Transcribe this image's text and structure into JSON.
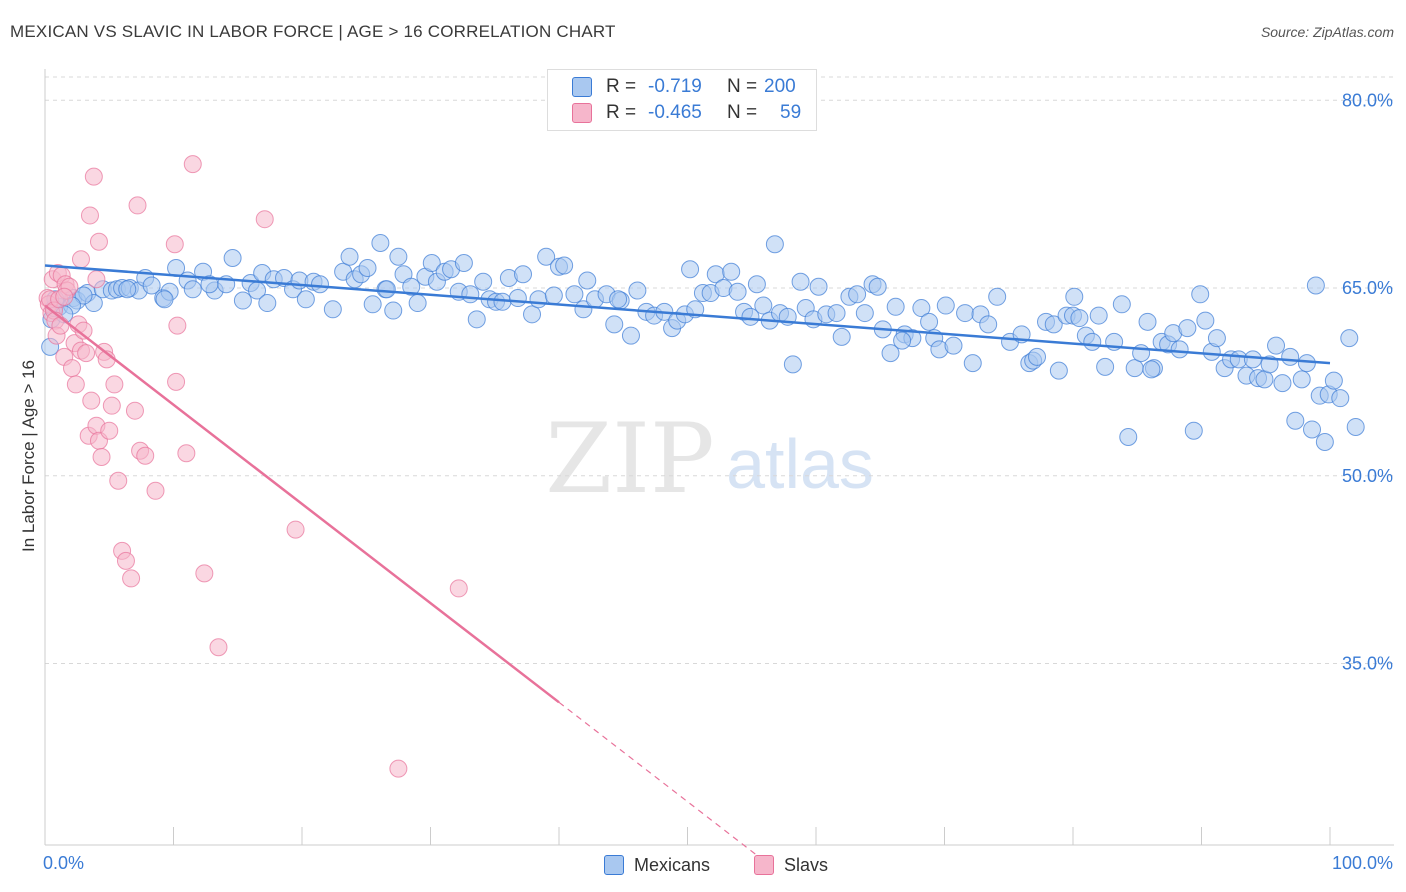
{
  "title": "MEXICAN VS SLAVIC IN LABOR FORCE | AGE > 16 CORRELATION CHART",
  "source": "Source: ZipAtlas.com",
  "watermark": {
    "zip": "ZIP",
    "atlas": "atlas"
  },
  "colors": {
    "blue": "#3a7bd5",
    "blue_fill": "#a9c8f0",
    "pink": "#e8729a",
    "pink_fill": "#f6b6cb",
    "grid": "#d8d8d8",
    "axis_text": "#3a7bd5"
  },
  "stats": {
    "rows": [
      {
        "r_label": "R =",
        "r_value": "-0.719",
        "n_label": "N =",
        "n_value": "200"
      },
      {
        "r_label": "R =",
        "r_value": "-0.465",
        "n_label": "N =",
        "n_value": "59"
      }
    ]
  },
  "legend": {
    "items": [
      "Mexicans",
      "Slavs"
    ]
  },
  "chart_data": {
    "type": "scatter",
    "xlabel": "",
    "ylabel": "In Labor Force | Age > 16",
    "xlim": [
      0,
      100
    ],
    "ylim": [
      20.5,
      82.5
    ],
    "x_tick_labels": [
      "0.0%",
      "100.0%"
    ],
    "y_ticks": [
      35,
      50,
      65,
      80
    ],
    "y_tick_labels": [
      "35.0%",
      "50.0%",
      "65.0%",
      "80.0%"
    ],
    "grid": "horizontal dashed",
    "legend_position": "bottom-center",
    "series": [
      {
        "name": "Mexicans",
        "color": "#3a7bd5",
        "trend": {
          "x": [
            0,
            100
          ],
          "y": [
            66.8,
            59.0
          ]
        },
        "points": [
          [
            0.4,
            60.3
          ],
          [
            0.5,
            62.5
          ],
          [
            0.7,
            63.4
          ],
          [
            1.1,
            63.5
          ],
          [
            2.2,
            64.2
          ],
          [
            2.5,
            64.0
          ],
          [
            3.3,
            64.6
          ],
          [
            3.8,
            63.8
          ],
          [
            4.5,
            64.9
          ],
          [
            5.2,
            64.8
          ],
          [
            5.6,
            64.9
          ],
          [
            6.0,
            65.0
          ],
          [
            6.6,
            65.0
          ],
          [
            7.3,
            64.8
          ],
          [
            7.8,
            65.8
          ],
          [
            8.3,
            65.2
          ],
          [
            9.2,
            64.2
          ],
          [
            9.7,
            64.7
          ],
          [
            10.2,
            66.6
          ],
          [
            11.1,
            65.6
          ],
          [
            11.5,
            64.9
          ],
          [
            12.3,
            66.3
          ],
          [
            13.2,
            64.8
          ],
          [
            14.1,
            65.3
          ],
          [
            14.6,
            67.4
          ],
          [
            15.4,
            64.0
          ],
          [
            16.0,
            65.4
          ],
          [
            16.5,
            64.8
          ],
          [
            16.9,
            66.2
          ],
          [
            17.3,
            63.8
          ],
          [
            17.8,
            65.7
          ],
          [
            18.6,
            65.8
          ],
          [
            19.3,
            64.9
          ],
          [
            19.8,
            65.6
          ],
          [
            20.3,
            64.1
          ],
          [
            20.9,
            65.5
          ],
          [
            21.4,
            65.3
          ],
          [
            22.4,
            63.3
          ],
          [
            23.2,
            66.3
          ],
          [
            23.7,
            67.5
          ],
          [
            24.1,
            65.7
          ],
          [
            24.6,
            66.1
          ],
          [
            25.1,
            66.6
          ],
          [
            25.5,
            63.7
          ],
          [
            26.1,
            68.6
          ],
          [
            26.5,
            64.9
          ],
          [
            27.1,
            63.2
          ],
          [
            27.5,
            67.5
          ],
          [
            27.9,
            66.1
          ],
          [
            28.5,
            65.1
          ],
          [
            29.0,
            63.8
          ],
          [
            29.6,
            65.9
          ],
          [
            30.1,
            67.0
          ],
          [
            30.5,
            65.5
          ],
          [
            31.1,
            66.3
          ],
          [
            31.6,
            66.5
          ],
          [
            32.2,
            64.7
          ],
          [
            32.6,
            67.0
          ],
          [
            33.1,
            64.5
          ],
          [
            33.6,
            62.5
          ],
          [
            34.1,
            65.5
          ],
          [
            34.6,
            64.1
          ],
          [
            35.1,
            63.9
          ],
          [
            35.6,
            63.9
          ],
          [
            36.1,
            65.8
          ],
          [
            36.8,
            64.2
          ],
          [
            37.2,
            66.1
          ],
          [
            37.9,
            62.9
          ],
          [
            38.4,
            64.1
          ],
          [
            39.0,
            67.5
          ],
          [
            39.6,
            64.4
          ],
          [
            40.0,
            66.7
          ],
          [
            41.2,
            64.5
          ],
          [
            41.9,
            63.3
          ],
          [
            42.2,
            65.6
          ],
          [
            42.8,
            64.1
          ],
          [
            43.7,
            64.5
          ],
          [
            44.3,
            62.1
          ],
          [
            44.8,
            64.0
          ],
          [
            45.6,
            61.2
          ],
          [
            46.1,
            64.8
          ],
          [
            46.8,
            63.1
          ],
          [
            47.4,
            62.8
          ],
          [
            48.2,
            63.1
          ],
          [
            48.8,
            61.8
          ],
          [
            49.2,
            62.4
          ],
          [
            49.8,
            62.9
          ],
          [
            50.2,
            66.5
          ],
          [
            50.6,
            63.3
          ],
          [
            51.2,
            64.6
          ],
          [
            51.8,
            64.6
          ],
          [
            52.2,
            66.1
          ],
          [
            52.8,
            65.0
          ],
          [
            53.4,
            66.3
          ],
          [
            53.9,
            64.7
          ],
          [
            54.4,
            63.1
          ],
          [
            54.9,
            62.7
          ],
          [
            55.4,
            65.3
          ],
          [
            55.9,
            63.6
          ],
          [
            56.4,
            62.4
          ],
          [
            56.8,
            68.5
          ],
          [
            57.2,
            63.0
          ],
          [
            57.8,
            62.7
          ],
          [
            58.2,
            58.9
          ],
          [
            58.8,
            65.5
          ],
          [
            59.2,
            63.4
          ],
          [
            59.8,
            62.5
          ],
          [
            60.2,
            65.1
          ],
          [
            60.8,
            62.9
          ],
          [
            61.6,
            63.0
          ],
          [
            62.0,
            61.1
          ],
          [
            62.6,
            64.3
          ],
          [
            63.2,
            64.5
          ],
          [
            63.8,
            63.0
          ],
          [
            64.4,
            65.3
          ],
          [
            64.8,
            65.1
          ],
          [
            65.2,
            61.7
          ],
          [
            65.8,
            59.8
          ],
          [
            66.2,
            63.5
          ],
          [
            66.9,
            61.3
          ],
          [
            67.5,
            61.0
          ],
          [
            68.2,
            63.4
          ],
          [
            68.8,
            62.3
          ],
          [
            69.2,
            61.0
          ],
          [
            69.6,
            60.1
          ],
          [
            70.1,
            63.6
          ],
          [
            70.7,
            60.4
          ],
          [
            71.6,
            63.0
          ],
          [
            72.2,
            59.0
          ],
          [
            72.8,
            62.9
          ],
          [
            73.4,
            62.1
          ],
          [
            74.1,
            64.3
          ],
          [
            75.1,
            60.7
          ],
          [
            76.0,
            61.3
          ],
          [
            76.6,
            59.0
          ],
          [
            76.9,
            59.2
          ],
          [
            77.2,
            59.5
          ],
          [
            77.9,
            62.3
          ],
          [
            78.5,
            62.1
          ],
          [
            78.9,
            58.4
          ],
          [
            79.5,
            62.8
          ],
          [
            80.0,
            62.8
          ],
          [
            80.5,
            62.6
          ],
          [
            81.0,
            61.2
          ],
          [
            81.5,
            60.7
          ],
          [
            82.0,
            62.8
          ],
          [
            82.5,
            58.7
          ],
          [
            83.2,
            60.7
          ],
          [
            83.8,
            63.7
          ],
          [
            84.3,
            53.1
          ],
          [
            84.8,
            58.6
          ],
          [
            85.3,
            59.8
          ],
          [
            85.8,
            62.3
          ],
          [
            86.3,
            58.6
          ],
          [
            86.9,
            60.7
          ],
          [
            87.4,
            60.5
          ],
          [
            87.8,
            61.4
          ],
          [
            88.3,
            60.1
          ],
          [
            88.9,
            61.8
          ],
          [
            89.4,
            53.6
          ],
          [
            89.9,
            64.5
          ],
          [
            90.3,
            62.4
          ],
          [
            90.8,
            59.9
          ],
          [
            91.2,
            61.0
          ],
          [
            91.8,
            58.6
          ],
          [
            92.3,
            59.3
          ],
          [
            92.9,
            59.3
          ],
          [
            93.5,
            58.0
          ],
          [
            94.0,
            59.3
          ],
          [
            94.4,
            57.8
          ],
          [
            94.9,
            57.7
          ],
          [
            95.3,
            58.9
          ],
          [
            95.8,
            60.4
          ],
          [
            96.3,
            57.4
          ],
          [
            96.9,
            59.5
          ],
          [
            97.3,
            54.4
          ],
          [
            97.8,
            57.7
          ],
          [
            98.2,
            59.0
          ],
          [
            98.6,
            53.7
          ],
          [
            98.9,
            65.2
          ],
          [
            99.2,
            56.4
          ],
          [
            99.6,
            52.7
          ],
          [
            99.9,
            56.5
          ],
          [
            100.3,
            57.6
          ],
          [
            100.8,
            56.2
          ],
          [
            101.5,
            61.0
          ],
          [
            102.0,
            53.9
          ],
          [
            86.1,
            58.5
          ],
          [
            80.1,
            64.3
          ],
          [
            66.7,
            60.8
          ],
          [
            44.6,
            64.1
          ],
          [
            40.4,
            66.8
          ],
          [
            26.6,
            64.9
          ],
          [
            12.8,
            65.3
          ],
          [
            9.3,
            64.1
          ],
          [
            6.4,
            64.9
          ],
          [
            3.0,
            64.4
          ],
          [
            2.1,
            63.6
          ],
          [
            1.5,
            62.9
          ],
          [
            0.8,
            64.1
          ]
        ]
      },
      {
        "name": "Slavs",
        "color": "#e8729a",
        "trend_solid": {
          "x": [
            0,
            40
          ],
          "y": [
            63.6,
            31.9
          ]
        },
        "trend_dashed": {
          "x": [
            40,
            55.5
          ],
          "y": [
            31.9,
            19.6
          ]
        },
        "points": [
          [
            0.2,
            64.2
          ],
          [
            0.3,
            63.7
          ],
          [
            0.4,
            64.1
          ],
          [
            0.5,
            63.0
          ],
          [
            0.6,
            65.7
          ],
          [
            0.7,
            63.2
          ],
          [
            0.8,
            62.4
          ],
          [
            0.9,
            61.2
          ],
          [
            1.0,
            66.2
          ],
          [
            1.1,
            64.1
          ],
          [
            1.2,
            62.0
          ],
          [
            1.3,
            66.0
          ],
          [
            1.5,
            59.5
          ],
          [
            1.6,
            65.3
          ],
          [
            1.7,
            64.8
          ],
          [
            1.9,
            65.1
          ],
          [
            2.1,
            58.6
          ],
          [
            2.3,
            60.6
          ],
          [
            2.4,
            57.3
          ],
          [
            2.6,
            62.1
          ],
          [
            2.8,
            60.0
          ],
          [
            3.0,
            61.6
          ],
          [
            3.2,
            59.8
          ],
          [
            3.4,
            53.2
          ],
          [
            3.6,
            56.0
          ],
          [
            4.0,
            54.0
          ],
          [
            4.2,
            52.8
          ],
          [
            4.4,
            51.5
          ],
          [
            4.6,
            59.9
          ],
          [
            4.8,
            59.3
          ],
          [
            5.0,
            53.6
          ],
          [
            5.2,
            55.6
          ],
          [
            5.4,
            57.3
          ],
          [
            5.7,
            49.6
          ],
          [
            6.0,
            44.0
          ],
          [
            6.3,
            43.2
          ],
          [
            6.7,
            41.8
          ],
          [
            7.0,
            55.2
          ],
          [
            7.4,
            52.0
          ],
          [
            7.8,
            51.6
          ],
          [
            3.8,
            73.9
          ],
          [
            4.2,
            68.7
          ],
          [
            2.8,
            67.3
          ],
          [
            3.5,
            70.8
          ],
          [
            4.0,
            65.7
          ],
          [
            1.5,
            64.3
          ],
          [
            7.2,
            71.6
          ],
          [
            8.6,
            48.8
          ],
          [
            11.5,
            74.9
          ],
          [
            10.1,
            68.5
          ],
          [
            10.3,
            62.0
          ],
          [
            10.2,
            57.5
          ],
          [
            11.0,
            51.8
          ],
          [
            12.4,
            42.2
          ],
          [
            17.1,
            70.5
          ],
          [
            19.5,
            45.7
          ],
          [
            27.5,
            26.6
          ],
          [
            32.2,
            41.0
          ],
          [
            13.5,
            36.3
          ]
        ]
      }
    ]
  }
}
